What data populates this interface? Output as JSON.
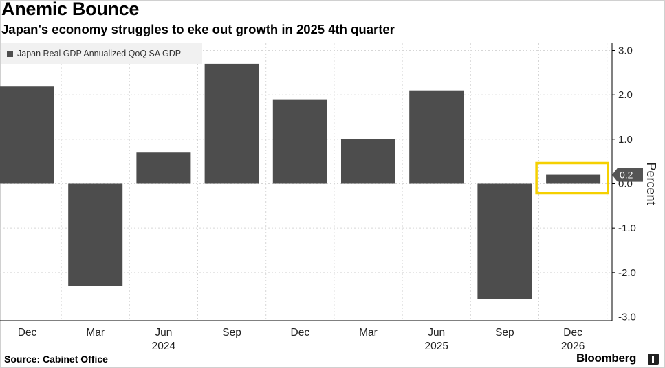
{
  "title": "Anemic Bounce",
  "subtitle": "Japan's economy struggles to eke out growth in 2025 4th quarter",
  "source": "Source: Cabinet Office",
  "brand": "Bloomberg",
  "colors": {
    "bar": "#4d4d4d",
    "highlight": "#f5d000",
    "grid": "#d6d6d6"
  },
  "chart_data": {
    "type": "bar",
    "title": "Anemic Bounce",
    "subtitle": "Japan's economy struggles to eke out growth in 2025 4th quarter",
    "ylabel": "Percent",
    "xlabel": "",
    "ylim": [
      -3.0,
      3.0
    ],
    "yticks": [
      3.0,
      2.0,
      1.0,
      0.0,
      -1.0,
      -2.0,
      -3.0
    ],
    "ytick_labels": [
      "3.0",
      "2.0",
      "1.0",
      "0.0",
      "-1.0",
      "-2.0",
      "-3.0"
    ],
    "categories": [
      "Dec",
      "Mar",
      "Jun",
      "Sep",
      "Dec",
      "Mar",
      "Jun",
      "Sep",
      "Dec"
    ],
    "year_labels": [
      {
        "category_index": 2,
        "label": "2024"
      },
      {
        "category_index": 6,
        "label": "2025"
      },
      {
        "category_index": 8,
        "label": "2026"
      }
    ],
    "series": [
      {
        "name": "Japan Real GDP Annualized QoQ SA GDP",
        "values": [
          2.2,
          -2.3,
          0.7,
          2.7,
          1.9,
          1.0,
          2.1,
          -2.6,
          0.2
        ]
      }
    ],
    "last_value_label": "0.2",
    "highlight_index": 8,
    "grid": true,
    "legend_position": "top-left"
  }
}
